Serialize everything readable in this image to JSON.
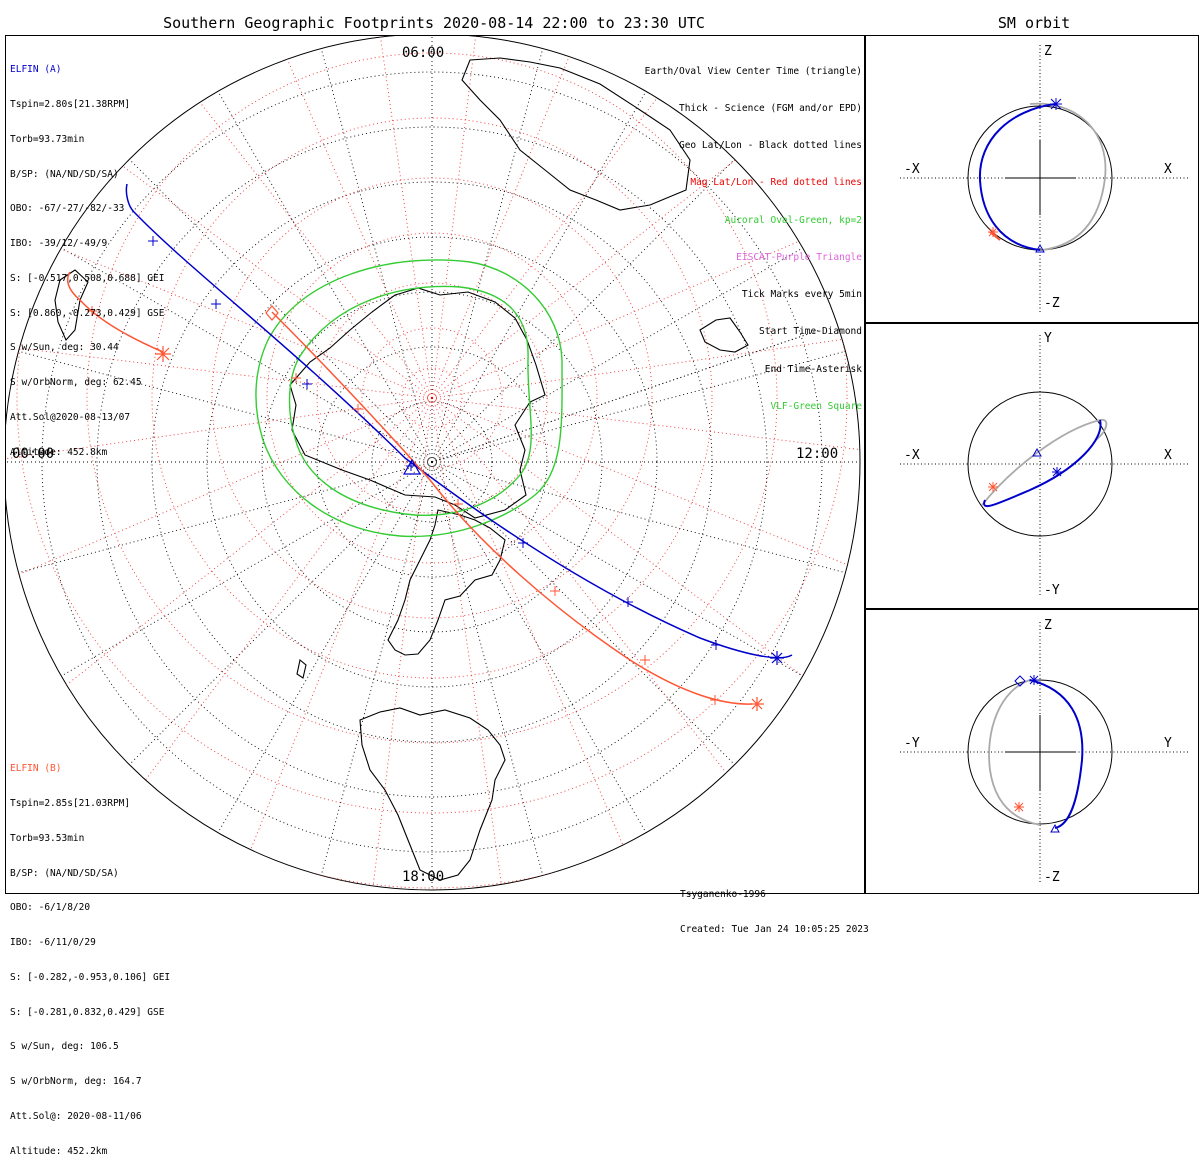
{
  "title": "Southern Geographic Footprints 2020-08-14 22:00 to 23:30 UTC",
  "sm_title": "SM orbit",
  "clock": {
    "top": "06:00",
    "left": "00:00",
    "right": "12:00",
    "bottom": "18:00"
  },
  "elfin_a": {
    "color": "#0000cc",
    "lines": [
      "ELFIN (A)",
      "Tspin=2.80s[21.38RPM]",
      "Torb=93.73min",
      "B/SP: (NA/ND/SD/SA)",
      "OBO: -67/-27/-82/-33",
      "IBO: -39/12/-49/9",
      "S: [-0.517,0.508,0.688] GEI",
      "S: [0.860,-0.273,0.429] GSE",
      "S w/Sun, deg: 30.44",
      "S w/OrbNorm, deg: 62.45",
      "Att.Sol@2020-08-13/07",
      "Altitude: 452.8km"
    ]
  },
  "elfin_b": {
    "color": "#ff5533",
    "lines": [
      "ELFIN (B)",
      "Tspin=2.85s[21.03RPM]",
      "Torb=93.53min",
      "B/SP: (NA/ND/SD/SA)",
      "OBO: -6/1/8/20",
      "IBO: -6/11/0/29",
      "S: [-0.282,-0.953,0.106] GEI",
      "S: [-0.281,0.832,0.429] GSE",
      "S w/Sun, deg: 106.5",
      "S w/OrbNorm, deg: 164.7",
      "Att.Sol@: 2020-08-11/06",
      "Altitude: 452.2km"
    ]
  },
  "legend": [
    {
      "text": "Earth/Oval View Center Time (triangle)",
      "color": "#000000"
    },
    {
      "text": "Thick - Science (FGM and/or EPD)",
      "color": "#000000"
    },
    {
      "text": "Geo Lat/Lon - Black dotted lines",
      "color": "#000000"
    },
    {
      "text": "Mag Lat/Lon - Red dotted lines",
      "color": "#ee0000"
    },
    {
      "text": "Auroral Oval-Green, kp=2",
      "color": "#33cc33"
    },
    {
      "text": "EISCAT-Purple Triangle",
      "color": "#dd66dd"
    },
    {
      "text": "Tick Marks every 5min",
      "color": "#000000"
    },
    {
      "text": "Start Time-Diamond",
      "color": "#000000"
    },
    {
      "text": "End Time-Asterisk",
      "color": "#000000"
    },
    {
      "text": "VLF-Green Square",
      "color": "#33cc33"
    }
  ],
  "footer": {
    "model": "Tsyganenko-1996",
    "created": "Created: Tue Jan 24 10:05:25 2023"
  },
  "sm_panels": [
    {
      "top": "Z",
      "bottom": "-Z",
      "left": "-X",
      "right": "X"
    },
    {
      "top": "Y",
      "bottom": "-Y",
      "left": "-X",
      "right": "X"
    },
    {
      "top": "Z",
      "bottom": "-Z",
      "left": "-Y",
      "right": "Y"
    }
  ],
  "colors": {
    "elfin_a": "#0000cc",
    "elfin_b": "#ff5533",
    "oval": "#33cc33",
    "mag_grid": "#ee3333",
    "orbit_other": "#aaaaaa"
  }
}
